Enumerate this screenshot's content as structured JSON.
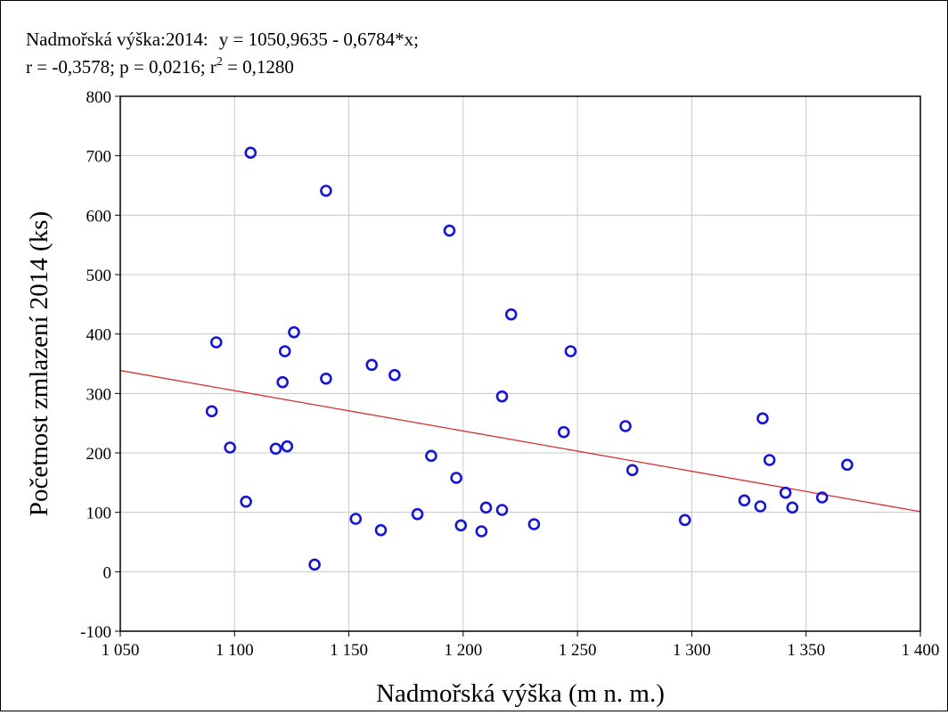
{
  "header": {
    "line1_prefix": "Nadmořská výška:2014:",
    "equation": "y = 1050,9635 - 0,6784*x;",
    "line2_stats": "r = -0,3578; p = 0,0216; r",
    "line2_sup": "2",
    "line2_end": " = 0,1280"
  },
  "chart_data": {
    "type": "scatter",
    "xlabel": "Nadmořská výška (m n. m.)",
    "ylabel": "Početnost zmlazení 2014 (ks)",
    "xlim": [
      1050,
      1400
    ],
    "ylim": [
      -100,
      800
    ],
    "x_ticks": [
      1050,
      1100,
      1150,
      1200,
      1250,
      1300,
      1350,
      1400
    ],
    "x_tick_labels": [
      "1 050",
      "1 100",
      "1 150",
      "1 200",
      "1 250",
      "1 300",
      "1 350",
      "1 400"
    ],
    "y_ticks": [
      -100,
      0,
      100,
      200,
      300,
      400,
      500,
      600,
      700,
      800
    ],
    "y_tick_labels": [
      "-100",
      "0",
      "100",
      "200",
      "300",
      "400",
      "500",
      "600",
      "700",
      "800"
    ],
    "grid": true,
    "regression": {
      "intercept": 1050.9635,
      "slope": -0.6784
    },
    "points": [
      {
        "x": 1090,
        "y": 270
      },
      {
        "x": 1092,
        "y": 386
      },
      {
        "x": 1098,
        "y": 209
      },
      {
        "x": 1105,
        "y": 118
      },
      {
        "x": 1107,
        "y": 705
      },
      {
        "x": 1118,
        "y": 207
      },
      {
        "x": 1121,
        "y": 319
      },
      {
        "x": 1122,
        "y": 371
      },
      {
        "x": 1123,
        "y": 211
      },
      {
        "x": 1126,
        "y": 403
      },
      {
        "x": 1135,
        "y": 12
      },
      {
        "x": 1140,
        "y": 641
      },
      {
        "x": 1140,
        "y": 325
      },
      {
        "x": 1153,
        "y": 89
      },
      {
        "x": 1160,
        "y": 348
      },
      {
        "x": 1164,
        "y": 70
      },
      {
        "x": 1170,
        "y": 331
      },
      {
        "x": 1180,
        "y": 97
      },
      {
        "x": 1186,
        "y": 195
      },
      {
        "x": 1194,
        "y": 574
      },
      {
        "x": 1197,
        "y": 158
      },
      {
        "x": 1199,
        "y": 78
      },
      {
        "x": 1208,
        "y": 68
      },
      {
        "x": 1210,
        "y": 108
      },
      {
        "x": 1217,
        "y": 295
      },
      {
        "x": 1217,
        "y": 104
      },
      {
        "x": 1221,
        "y": 433
      },
      {
        "x": 1231,
        "y": 80
      },
      {
        "x": 1244,
        "y": 235
      },
      {
        "x": 1247,
        "y": 371
      },
      {
        "x": 1271,
        "y": 245
      },
      {
        "x": 1274,
        "y": 171
      },
      {
        "x": 1297,
        "y": 87
      },
      {
        "x": 1323,
        "y": 120
      },
      {
        "x": 1330,
        "y": 110
      },
      {
        "x": 1331,
        "y": 258
      },
      {
        "x": 1334,
        "y": 188
      },
      {
        "x": 1341,
        "y": 133
      },
      {
        "x": 1344,
        "y": 108
      },
      {
        "x": 1357,
        "y": 125
      },
      {
        "x": 1368,
        "y": 180
      }
    ]
  },
  "colors": {
    "points": "#1515d6",
    "regression_line": "#d43030",
    "grid": "#c8c8c8"
  }
}
